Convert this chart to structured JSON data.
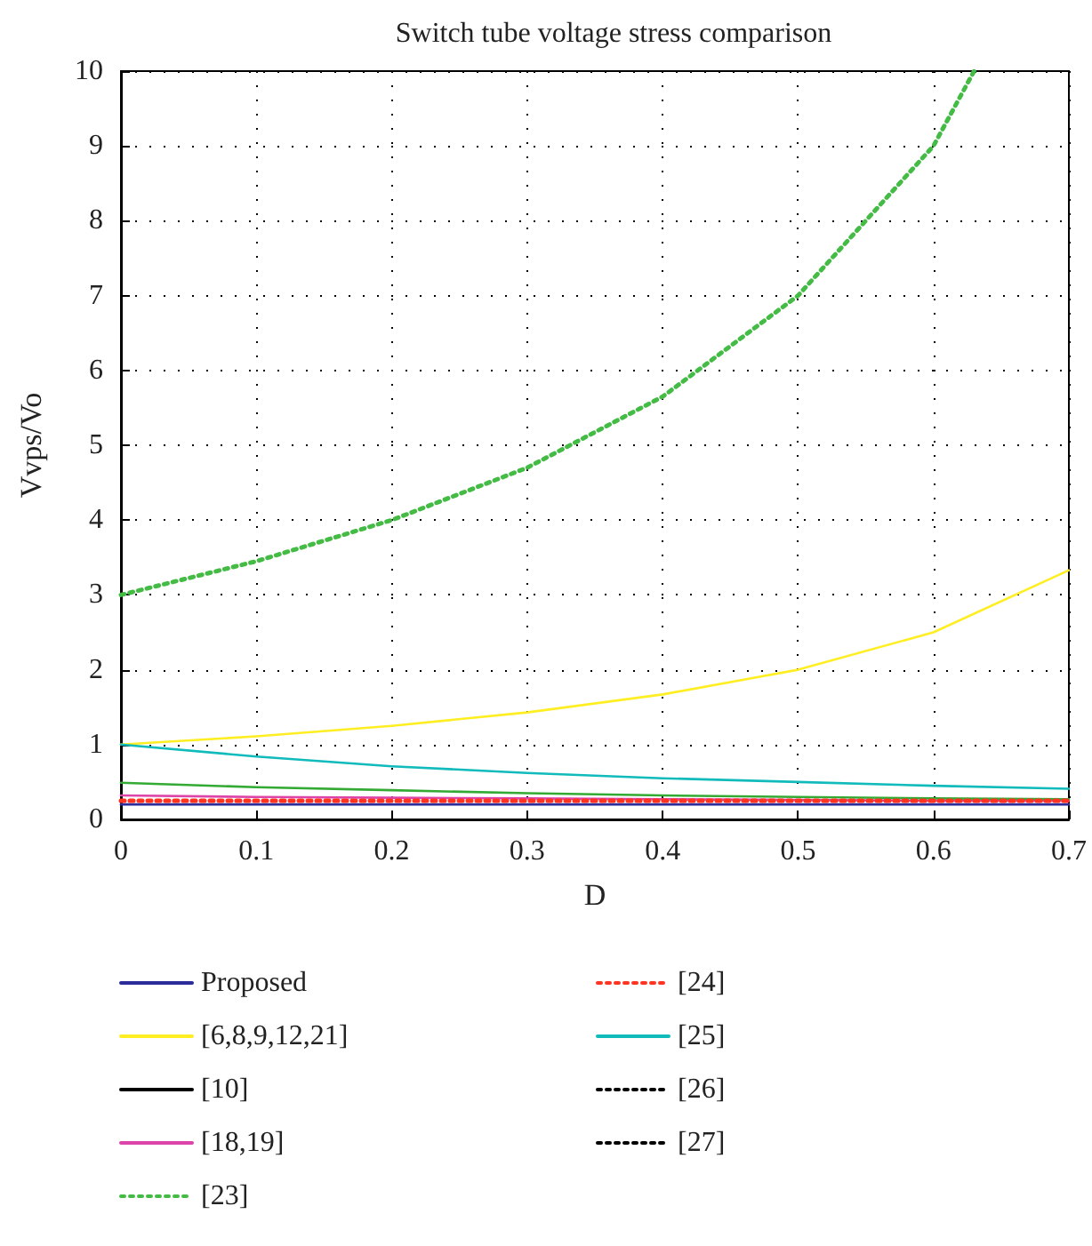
{
  "chart_data": {
    "type": "line",
    "title": "Switch tube voltage stress comparison",
    "xlabel": "D",
    "ylabel": "Vvps/Vo",
    "x": [
      0,
      0.1,
      0.2,
      0.3,
      0.4,
      0.5,
      0.6,
      0.7
    ],
    "series": [
      {
        "name": "Proposed",
        "color": "#2b2b9a",
        "values": [
          0.2,
          0.2,
          0.2,
          0.2,
          0.2,
          0.2,
          0.2,
          0.2
        ]
      },
      {
        "name": "[6,8,9,12,21]",
        "color": "#ffee22",
        "values": [
          1,
          1.11,
          1.25,
          1.43,
          1.67,
          2,
          2.5,
          3.33
        ]
      },
      {
        "name": "[10]",
        "color": "#000000",
        "values": [
          null,
          null,
          null,
          null,
          null,
          null,
          null,
          null
        ]
      },
      {
        "name": "[18,19]",
        "color": "#dd44aa",
        "values": [
          0.32,
          0.3,
          0.29,
          0.28,
          0.27,
          0.26,
          0.25,
          0.25
        ]
      },
      {
        "name": "[23]",
        "color": "#44bb44",
        "line_style": "dotted",
        "x": [
          0,
          0.1,
          0.2,
          0.3,
          0.4,
          0.5,
          0.6,
          0.63
        ],
        "values": [
          3,
          3.45,
          4,
          4.7,
          5.65,
          7,
          9,
          10
        ]
      },
      {
        "name": "[24]",
        "color": "#ff3322",
        "line_style": "dotted",
        "values": [
          0.25,
          0.25,
          0.25,
          0.25,
          0.25,
          0.25,
          0.25,
          0.25
        ]
      },
      {
        "name": "[25]",
        "color": "#11bbbb",
        "values": [
          1,
          0.84,
          0.71,
          0.62,
          0.55,
          0.5,
          0.45,
          0.41
        ]
      },
      {
        "name": "[26]",
        "color": "#000000",
        "line_style": "dotted",
        "values": [
          null,
          null,
          null,
          null,
          null,
          null,
          null,
          null
        ]
      },
      {
        "name": "[27]",
        "color": "#000000",
        "line_style": "dotted",
        "values": [
          null,
          null,
          null,
          null,
          null,
          null,
          null,
          null
        ]
      },
      {
        "color": "#33aa33",
        "values": [
          0.49,
          0.43,
          0.39,
          0.35,
          0.32,
          0.3,
          0.28,
          0.27
        ]
      }
    ],
    "xlim": [
      0,
      0.7
    ],
    "xticks": [
      0,
      0.1,
      0.2,
      0.3,
      0.4,
      0.5,
      0.6,
      0.7
    ],
    "ylim": [
      0,
      10
    ],
    "yticks": [
      0,
      1,
      2,
      3,
      4,
      5,
      6,
      7,
      8,
      9,
      10
    ],
    "grid": true,
    "legend": "bottom",
    "marker": "none",
    "line_style": "solid"
  }
}
